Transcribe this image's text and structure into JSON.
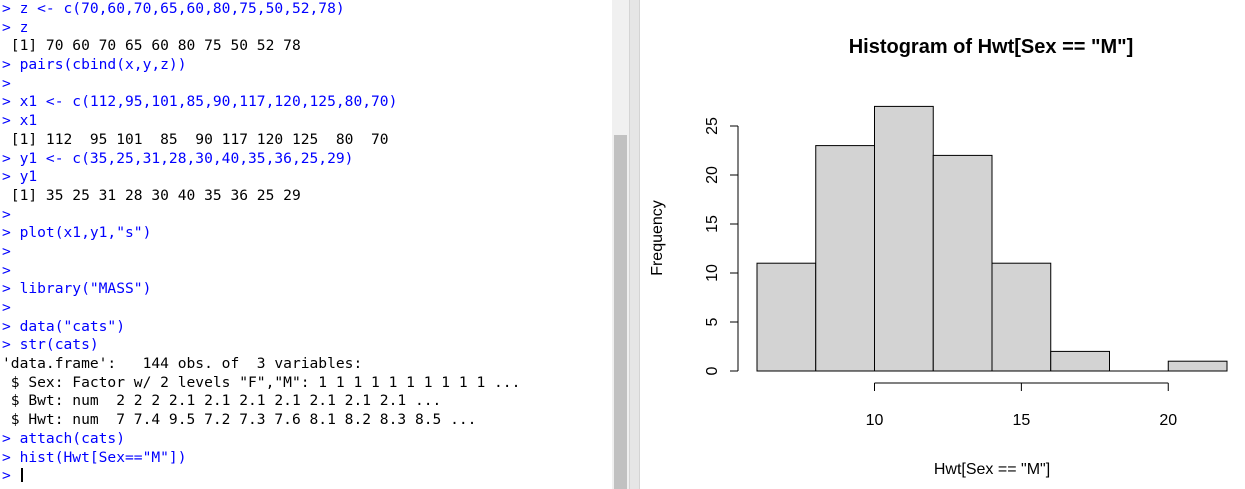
{
  "console": {
    "lines": [
      {
        "text": "> z <- c(70,60,70,65,60,80,75,50,52,78)",
        "type": "cmd"
      },
      {
        "text": "> z",
        "type": "cmd"
      },
      {
        "text": " [1] 70 60 70 65 60 80 75 50 52 78",
        "type": "out"
      },
      {
        "text": "> pairs(cbind(x,y,z))",
        "type": "cmd"
      },
      {
        "text": ">",
        "type": "cmd"
      },
      {
        "text": "> x1 <- c(112,95,101,85,90,117,120,125,80,70)",
        "type": "cmd"
      },
      {
        "text": "> x1",
        "type": "cmd"
      },
      {
        "text": " [1] 112  95 101  85  90 117 120 125  80  70",
        "type": "out"
      },
      {
        "text": "> y1 <- c(35,25,31,28,30,40,35,36,25,29)",
        "type": "cmd"
      },
      {
        "text": "> y1",
        "type": "cmd"
      },
      {
        "text": " [1] 35 25 31 28 30 40 35 36 25 29",
        "type": "out"
      },
      {
        "text": ">",
        "type": "cmd"
      },
      {
        "text": "> plot(x1,y1,\"s\")",
        "type": "cmd"
      },
      {
        "text": ">",
        "type": "cmd"
      },
      {
        "text": ">",
        "type": "cmd"
      },
      {
        "text": "> library(\"MASS\")",
        "type": "cmd"
      },
      {
        "text": ">",
        "type": "cmd"
      },
      {
        "text": "> data(\"cats\")",
        "type": "cmd"
      },
      {
        "text": "> str(cats)",
        "type": "cmd"
      },
      {
        "text": "'data.frame':   144 obs. of  3 variables:",
        "type": "out"
      },
      {
        "text": " $ Sex: Factor w/ 2 levels \"F\",\"M\": 1 1 1 1 1 1 1 1 1 1 ...",
        "type": "out"
      },
      {
        "text": " $ Bwt: num  2 2 2 2.1 2.1 2.1 2.1 2.1 2.1 2.1 ...",
        "type": "out"
      },
      {
        "text": " $ Hwt: num  7 7.4 9.5 7.2 7.3 7.6 8.1 8.2 8.3 8.5 ...",
        "type": "out"
      },
      {
        "text": "> attach(cats)",
        "type": "cmd"
      },
      {
        "text": "> hist(Hwt[Sex==\"M\"])",
        "type": "cmd"
      },
      {
        "text": "> ",
        "type": "cmd",
        "cursor": true
      }
    ]
  },
  "chart_data": {
    "type": "bar",
    "title": "Histogram of Hwt[Sex == \"M\"]",
    "xlabel": "Hwt[Sex == \"M\"]",
    "ylabel": "Frequency",
    "bins": [
      [
        6,
        8
      ],
      [
        8,
        10
      ],
      [
        10,
        12
      ],
      [
        12,
        14
      ],
      [
        14,
        16
      ],
      [
        16,
        18
      ],
      [
        18,
        20
      ],
      [
        20,
        22
      ]
    ],
    "values": [
      11,
      23,
      27,
      22,
      11,
      2,
      0,
      1
    ],
    "xticks": [
      10,
      15,
      20
    ],
    "yticks": [
      0,
      5,
      10,
      15,
      20,
      25
    ],
    "xlim": [
      6,
      22
    ],
    "ylim": [
      0,
      27
    ],
    "bar_color": "#d3d3d3",
    "grid": false
  }
}
